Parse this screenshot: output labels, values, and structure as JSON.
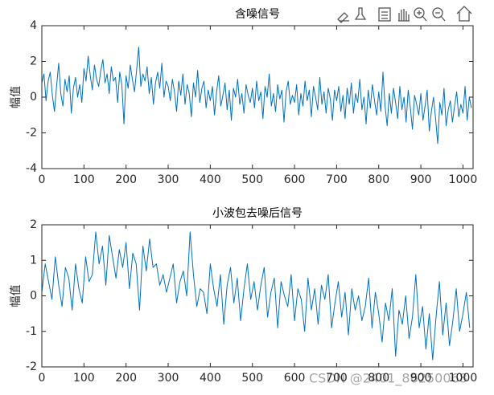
{
  "chart_data": [
    {
      "type": "line",
      "title": "含噪信号",
      "ylabel": "幅值",
      "x": [
        0,
        5,
        10,
        15,
        20,
        25,
        30,
        35,
        40,
        45,
        50,
        55,
        60,
        65,
        70,
        75,
        80,
        85,
        90,
        95,
        100,
        105,
        110,
        115,
        120,
        125,
        130,
        135,
        140,
        145,
        150,
        155,
        160,
        165,
        170,
        175,
        180,
        185,
        190,
        195,
        200,
        205,
        210,
        215,
        220,
        225,
        230,
        235,
        240,
        245,
        250,
        255,
        260,
        265,
        270,
        275,
        280,
        285,
        290,
        295,
        300,
        305,
        310,
        315,
        320,
        325,
        330,
        335,
        340,
        345,
        350,
        355,
        360,
        365,
        370,
        375,
        380,
        385,
        390,
        395,
        400,
        405,
        410,
        415,
        420,
        425,
        430,
        435,
        440,
        445,
        450,
        455,
        460,
        465,
        470,
        475,
        480,
        485,
        490,
        495,
        500,
        505,
        510,
        515,
        520,
        525,
        530,
        535,
        540,
        545,
        550,
        555,
        560,
        565,
        570,
        575,
        580,
        585,
        590,
        595,
        600,
        605,
        610,
        615,
        620,
        625,
        630,
        635,
        640,
        645,
        650,
        655,
        660,
        665,
        670,
        675,
        680,
        685,
        690,
        695,
        700,
        705,
        710,
        715,
        720,
        725,
        730,
        735,
        740,
        745,
        750,
        755,
        760,
        765,
        770,
        775,
        780,
        785,
        790,
        795,
        800,
        805,
        810,
        815,
        820,
        825,
        830,
        835,
        840,
        845,
        850,
        855,
        860,
        865,
        870,
        875,
        880,
        885,
        890,
        895,
        900,
        905,
        910,
        915,
        920,
        925,
        930,
        935,
        940,
        945,
        950,
        955,
        960,
        965,
        970,
        975,
        980,
        985,
        990,
        995,
        1000,
        1005,
        1010,
        1015,
        1020
      ],
      "series": [
        {
          "color": "#0072bd",
          "values": [
            0.8,
            1.3,
            -0.2,
            0.9,
            1.4,
            0.1,
            -0.8,
            0.6,
            1.9,
            0.2,
            -0.5,
            1.0,
            0.3,
            1.2,
            -0.9,
            0.5,
            1.1,
            0.0,
            0.7,
            -0.3,
            1.6,
            0.9,
            2.3,
            1.2,
            0.4,
            1.8,
            1.0,
            0.6,
            1.5,
            2.1,
            0.8,
            1.3,
            0.2,
            1.7,
            0.9,
            1.1,
            -0.3,
            1.4,
            0.7,
            -1.5,
            1.2,
            0.5,
            1.8,
            1.0,
            0.3,
            1.5,
            2.8,
            0.6,
            1.3,
            0.9,
            1.7,
            0.2,
            1.1,
            -0.4,
            0.8,
            1.4,
            0.5,
            1.9,
            0.0,
            0.9,
            0.6,
            -0.2,
            1.0,
            0.3,
            -0.8,
            0.9,
            0.1,
            1.3,
            -0.4,
            0.7,
            0.2,
            -1.1,
            0.8,
            0.0,
            1.5,
            -0.3,
            0.5,
            0.9,
            -0.6,
            0.4,
            -0.2,
            0.6,
            -1.0,
            0.3,
            1.2,
            -0.5,
            0.1,
            0.8,
            -0.7,
            0.4,
            -1.3,
            0.5,
            0.0,
            1.0,
            -0.4,
            0.2,
            -0.9,
            0.7,
            0.1,
            -0.3,
            0.5,
            -0.6,
            0.9,
            -0.2,
            0.3,
            -1.2,
            0.6,
            0.0,
            1.3,
            -0.5,
            0.2,
            -0.8,
            0.7,
            -0.1,
            0.4,
            -1.4,
            0.3,
            0.9,
            -0.4,
            0.1,
            -0.3,
            0.7,
            -1.0,
            0.2,
            -0.5,
            0.9,
            -0.2,
            0.4,
            -1.1,
            0.6,
            0.0,
            -0.7,
            1.1,
            -0.4,
            0.3,
            -0.9,
            0.5,
            -0.1,
            -1.3,
            0.4,
            -0.2,
            0.6,
            -0.8,
            0.1,
            -1.2,
            0.5,
            -0.4,
            0.8,
            -0.9,
            0.2,
            -0.3,
            1.0,
            -0.7,
            0.0,
            -1.5,
            0.4,
            -0.6,
            0.7,
            -0.2,
            -1.0,
            0.3,
            -0.8,
            1.4,
            -0.5,
            -1.6,
            0.2,
            -0.9,
            0.5,
            -0.3,
            -1.2,
            0.6,
            -0.7,
            0.0,
            -1.4,
            0.4,
            -0.6,
            -1.8,
            0.1,
            -0.4,
            -1.0,
            0.2,
            -1.3,
            -0.5,
            0.4,
            -1.9,
            -0.8,
            0.0,
            -1.2,
            -2.6,
            -0.3,
            -1.0,
            0.5,
            -1.6,
            -0.7,
            -0.2,
            -1.4,
            -0.5,
            0.3,
            -1.1,
            -0.4,
            -0.9,
            0.6,
            -1.3,
            0.0,
            -0.6
          ]
        }
      ],
      "xlim": [
        0,
        1024
      ],
      "xticks": [
        0,
        100,
        200,
        300,
        400,
        500,
        600,
        700,
        800,
        900,
        1000
      ],
      "ylim": [
        -4,
        4
      ],
      "yticks": [
        -4,
        -2,
        0,
        2,
        4
      ]
    },
    {
      "type": "line",
      "title": "小波包去噪后信号",
      "ylabel": "幅值",
      "x": [
        0,
        8,
        16,
        24,
        32,
        40,
        48,
        56,
        64,
        72,
        80,
        88,
        96,
        104,
        112,
        120,
        128,
        136,
        144,
        152,
        160,
        168,
        176,
        184,
        192,
        200,
        208,
        216,
        224,
        232,
        240,
        248,
        256,
        264,
        272,
        280,
        288,
        296,
        304,
        312,
        320,
        328,
        336,
        344,
        352,
        360,
        368,
        376,
        384,
        392,
        400,
        408,
        416,
        424,
        432,
        440,
        448,
        456,
        464,
        472,
        480,
        488,
        496,
        504,
        512,
        520,
        528,
        536,
        544,
        552,
        560,
        568,
        576,
        584,
        592,
        600,
        608,
        616,
        624,
        632,
        640,
        648,
        656,
        664,
        672,
        680,
        688,
        696,
        704,
        712,
        720,
        728,
        736,
        744,
        752,
        760,
        768,
        776,
        784,
        792,
        800,
        808,
        816,
        824,
        832,
        840,
        848,
        856,
        864,
        872,
        880,
        888,
        896,
        904,
        912,
        920,
        928,
        936,
        944,
        952,
        960,
        968,
        976,
        984,
        992,
        1000,
        1008,
        1016
      ],
      "series": [
        {
          "color": "#0072bd",
          "values": [
            0.1,
            0.9,
            0.4,
            -0.1,
            1.1,
            0.3,
            -0.3,
            0.8,
            0.5,
            -0.4,
            0.9,
            0.2,
            -0.2,
            1.1,
            0.4,
            0.6,
            1.8,
            0.9,
            1.4,
            0.3,
            1.7,
            1.1,
            0.5,
            1.3,
            0.8,
            1.5,
            0.2,
            1.2,
            0.9,
            -0.4,
            1.4,
            0.7,
            1.6,
            0.8,
            0.9,
            0.3,
            0.6,
            0.1,
            0.5,
            0.9,
            -0.2,
            0.4,
            0.7,
            0.0,
            1.8,
            0.6,
            -0.3,
            0.2,
            0.1,
            -0.5,
            0.9,
            0.2,
            -0.3,
            0.6,
            -0.8,
            0.3,
            0.8,
            -0.2,
            0.5,
            -0.7,
            0.2,
            0.9,
            -0.1,
            0.4,
            -0.4,
            0.3,
            0.8,
            -0.6,
            0.1,
            0.5,
            -0.9,
            0.4,
            0.0,
            -0.3,
            0.6,
            -0.7,
            0.2,
            -0.1,
            -1.0,
            0.5,
            -0.4,
            0.2,
            -0.8,
            0.3,
            -0.1,
            0.6,
            -0.9,
            -0.2,
            0.4,
            -0.6,
            0.1,
            -1.1,
            0.2,
            -0.4,
            0.0,
            -0.7,
            -0.3,
            0.5,
            -0.9,
            0.1,
            -0.5,
            -1.3,
            -0.2,
            -0.7,
            0.2,
            -1.7,
            -0.4,
            -0.8,
            0.0,
            -1.2,
            -0.6,
            0.6,
            -0.9,
            -0.3,
            -1.5,
            -0.5,
            -1.8,
            -0.6,
            0.4,
            -1.1,
            -0.2,
            -1.4,
            -0.7,
            0.2,
            -1.0,
            -0.5,
            0.1,
            -0.9
          ]
        }
      ],
      "xlim": [
        0,
        1024
      ],
      "xticks": [
        0,
        100,
        200,
        300,
        400,
        500,
        600,
        700,
        800,
        900,
        1000
      ],
      "ylim": [
        -2,
        2
      ],
      "yticks": [
        -2,
        -1,
        0,
        1,
        2
      ]
    }
  ],
  "watermark": "CSDN @2401_86250068"
}
